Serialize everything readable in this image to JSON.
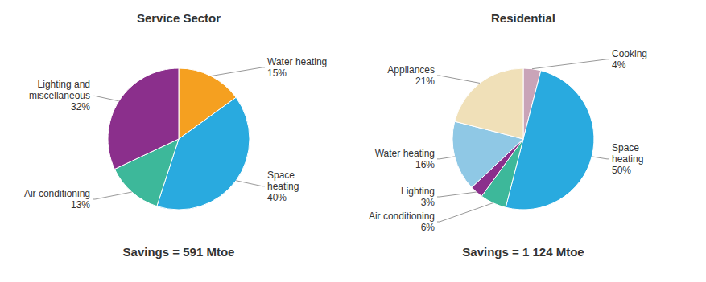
{
  "chart_data": [
    {
      "type": "pie",
      "title": "Service Sector",
      "categories": [
        "Water heating",
        "Space\nheating",
        "Air conditioning",
        "Lighting and\nmiscellaneous"
      ],
      "values": [
        15,
        40,
        13,
        32
      ],
      "value_labels": [
        "15%",
        "40%",
        "13%",
        "32%"
      ],
      "colors": [
        "#F5A020",
        "#29AADF",
        "#3DB89A",
        "#8B2F8C"
      ],
      "annotations": [
        "Savings = 591 Mtoe"
      ]
    },
    {
      "type": "pie",
      "title": "Residential",
      "categories": [
        "Cooking",
        "Space\nheating",
        "Air conditioning",
        "Lighting",
        "Water heating",
        "Appliances"
      ],
      "values": [
        4,
        50,
        6,
        3,
        16,
        21
      ],
      "value_labels": [
        "4%",
        "50%",
        "6%",
        "3%",
        "16%",
        "21%"
      ],
      "colors": [
        "#C9A4B8",
        "#29AADF",
        "#3DB89A",
        "#8B2F8C",
        "#8FC8E5",
        "#F0E0B8"
      ],
      "annotations": [
        "Savings = 1 124 Mtoe"
      ]
    }
  ]
}
